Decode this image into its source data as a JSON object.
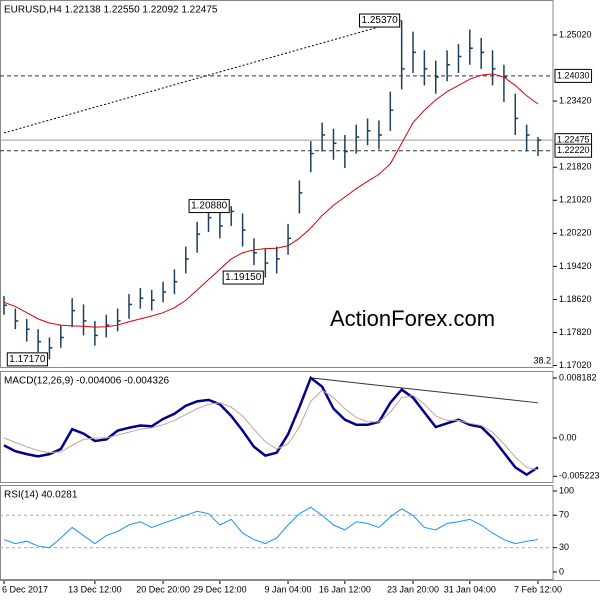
{
  "chart_data": [
    {
      "type": "ohlc",
      "title": "EURUSD,H4  1.22138 1.22550 1.22092 1.22475",
      "watermark": "ActionForex.com",
      "note": "38.2",
      "color": "#1c3f5e",
      "categories": [
        "6 Dec 2017",
        null,
        null,
        null,
        null,
        null,
        null,
        null,
        "13 Dec 12:00",
        null,
        null,
        null,
        null,
        null,
        "20 Dec 20:00",
        null,
        null,
        null,
        null,
        "29 Dec 12:00",
        null,
        null,
        null,
        null,
        null,
        "9 Jan 04:00",
        null,
        null,
        null,
        null,
        "16 Jan 12:00",
        null,
        null,
        null,
        null,
        null,
        "23 Jan 20:00",
        null,
        null,
        null,
        null,
        "31 Jan 04:00",
        null,
        null,
        null,
        null,
        null,
        "7 Feb 12:00"
      ],
      "high": {
        "values": [
          1.187,
          1.184,
          1.1815,
          1.179,
          1.177,
          1.18,
          1.1865,
          1.185,
          1.181,
          1.1825,
          1.184,
          1.1875,
          1.189,
          1.1885,
          1.1905,
          1.1935,
          1.199,
          1.205,
          1.2085,
          1.2075,
          1.2088,
          1.207,
          1.201,
          1.1985,
          1.199,
          1.2045,
          1.215,
          1.2245,
          1.229,
          1.2275,
          1.226,
          1.2285,
          1.23,
          1.2295,
          1.2365,
          1.2537,
          1.251,
          1.2465,
          1.244,
          1.2465,
          1.248,
          1.2515,
          1.2495,
          1.2465,
          1.243,
          1.236,
          1.2285,
          1.2255
        ],
        "value_labels": [
          null,
          null,
          null,
          null,
          null,
          null,
          null,
          null,
          null,
          null,
          null,
          null,
          null,
          null,
          null,
          null,
          null,
          null,
          null,
          null,
          "1.20880",
          null,
          null,
          null,
          null,
          null,
          null,
          null,
          null,
          null,
          null,
          null,
          null,
          null,
          null,
          "1.25370",
          null,
          null,
          null,
          null,
          null,
          null,
          null,
          null,
          null,
          null,
          null,
          null
        ]
      },
      "low": {
        "values": [
          1.1825,
          1.179,
          1.176,
          1.1735,
          1.1717,
          1.1745,
          1.1795,
          1.1775,
          1.175,
          1.177,
          1.1785,
          1.1815,
          1.184,
          1.1835,
          1.1855,
          1.1875,
          1.1925,
          1.1975,
          1.2025,
          1.201,
          1.204,
          1.199,
          1.1945,
          1.1915,
          1.1925,
          1.197,
          1.207,
          1.217,
          1.222,
          1.22,
          1.218,
          1.2215,
          1.2235,
          1.2225,
          1.227,
          1.237,
          1.241,
          1.238,
          1.236,
          1.239,
          1.241,
          1.243,
          1.242,
          1.238,
          1.234,
          1.226,
          1.222,
          1.22092
        ],
        "value_labels": [
          null,
          null,
          null,
          null,
          "1.17170",
          null,
          null,
          null,
          null,
          null,
          null,
          null,
          null,
          null,
          null,
          null,
          null,
          null,
          null,
          null,
          null,
          null,
          null,
          "1.19150",
          null,
          null,
          null,
          null,
          null,
          null,
          null,
          null,
          null,
          null,
          null,
          null,
          null,
          null,
          null,
          null,
          null,
          null,
          null,
          null,
          null,
          null,
          null,
          null
        ]
      },
      "close": {
        "values": [
          1.1848,
          1.181,
          1.179,
          1.176,
          1.1745,
          1.177,
          1.1835,
          1.181,
          1.1775,
          1.18,
          1.181,
          1.185,
          1.1865,
          1.186,
          1.188,
          1.1905,
          1.196,
          1.202,
          1.206,
          1.204,
          1.2075,
          1.203,
          1.1975,
          1.195,
          1.196,
          1.201,
          1.212,
          1.2215,
          1.226,
          1.224,
          1.222,
          1.2255,
          1.227,
          1.226,
          1.232,
          1.242,
          1.246,
          1.242,
          1.24,
          1.243,
          1.245,
          1.247,
          1.246,
          1.242,
          1.24,
          1.23,
          1.226,
          1.22475
        ]
      },
      "series": [
        {
          "color": "#e00000",
          "values": [
            1.1855,
            1.1845,
            1.183,
            1.1815,
            1.1805,
            1.18,
            1.1798,
            1.1797,
            1.1795,
            1.1796,
            1.18,
            1.1808,
            1.1815,
            1.1822,
            1.183,
            1.1842,
            1.186,
            1.1885,
            1.191,
            1.1935,
            1.196,
            1.1975,
            1.1982,
            1.1985,
            1.1986,
            1.1992,
            1.201,
            1.2035,
            1.2065,
            1.209,
            1.211,
            1.213,
            1.2148,
            1.2165,
            1.219,
            1.224,
            1.229,
            1.232,
            1.2345,
            1.2365,
            1.238,
            1.2395,
            1.2405,
            1.2408,
            1.24,
            1.238,
            1.2355,
            1.2335
          ]
        }
      ],
      "hlines": [
        {
          "value": 1.2403,
          "label": "1.24030",
          "style": "dashed"
        },
        {
          "value": 1.22475,
          "label": "1.22475",
          "style": "solid"
        },
        {
          "value": 1.2222,
          "label": "1.22220",
          "style": "dashed"
        }
      ],
      "trendline": {
        "x": [
          0,
          35
        ],
        "values": [
          1.2265,
          1.2537
        ]
      },
      "ylim": [
        1.16961,
        1.25867
      ],
      "yticks": [
        {
          "value": 1.2502,
          "label": "1.25020"
        },
        {
          "value": 1.2342,
          "label": "1.23420"
        },
        {
          "value": 1.2182,
          "label": "1.21820"
        },
        {
          "value": 1.2102,
          "label": "1.21020"
        },
        {
          "value": 1.2022,
          "label": "1.20220"
        },
        {
          "value": 1.1942,
          "label": "1.19420"
        },
        {
          "value": 1.1862,
          "label": "1.18620"
        },
        {
          "value": 1.1782,
          "label": "1.17820"
        },
        {
          "value": 1.1702,
          "label": "1.17020"
        }
      ]
    },
    {
      "type": "line",
      "title": "MACD(12,26,9) -0.004006 -0.004326",
      "series": [
        {
          "color": "#00008b",
          "width": 2.5,
          "values": [
            -0.001,
            -0.0018,
            -0.0022,
            -0.0025,
            -0.0022,
            -0.0015,
            0.0012,
            0.0006,
            -0.0004,
            -0.0002,
            0.001,
            0.0014,
            0.0017,
            0.0016,
            0.0026,
            0.0033,
            0.0044,
            0.005,
            0.0052,
            0.0046,
            0.003,
            0.001,
            -0.0012,
            -0.0024,
            -0.002,
            0.0005,
            0.0042,
            0.0082,
            0.007,
            0.004,
            0.0025,
            0.0018,
            0.0018,
            0.0022,
            0.0048,
            0.0066,
            0.0055,
            0.0035,
            0.0015,
            0.002,
            0.0025,
            0.0018,
            0.0015,
            0.0,
            -0.002,
            -0.004,
            -0.005,
            -0.004006
          ]
        },
        {
          "color": "#c8a0a0",
          "width": 1,
          "values": [
            0.0,
            -0.0006,
            -0.0012,
            -0.0017,
            -0.002,
            -0.0019,
            -0.001,
            -0.0002,
            0.0,
            0.0,
            0.0004,
            0.0008,
            0.0012,
            0.0014,
            0.0018,
            0.0024,
            0.0032,
            0.004,
            0.0046,
            0.0048,
            0.0042,
            0.003,
            0.0012,
            -0.0005,
            -0.0015,
            -0.0008,
            0.0015,
            0.005,
            0.0065,
            0.0055,
            0.004,
            0.0028,
            0.0022,
            0.0022,
            0.0035,
            0.0055,
            0.0058,
            0.0046,
            0.003,
            0.0024,
            0.0024,
            0.002,
            0.0017,
            0.0008,
            -0.0008,
            -0.0026,
            -0.004,
            -0.004326
          ]
        }
      ],
      "trendline": {
        "x": [
          27,
          47
        ],
        "values": [
          0.0082,
          0.0048
        ]
      },
      "ylim": [
        -0.006138,
        0.009139
      ],
      "yticks": [
        0.008182,
        {
          "value": 0,
          "label": "0.00"
        },
        -0.005223
      ]
    },
    {
      "type": "line",
      "title": "RSI(14) 40.0281",
      "series": [
        {
          "color": "#1e90ff",
          "width": 1,
          "values": [
            40,
            35,
            38,
            32,
            30,
            42,
            55,
            45,
            35,
            45,
            50,
            58,
            62,
            55,
            60,
            65,
            70,
            75,
            72,
            58,
            65,
            48,
            40,
            35,
            42,
            58,
            72,
            80,
            70,
            58,
            52,
            62,
            60,
            55,
            68,
            78,
            70,
            55,
            52,
            60,
            62,
            65,
            58,
            48,
            40,
            35,
            38,
            40.0281
          ]
        }
      ],
      "levels": [
        70,
        30
      ],
      "ylim": [
        -9.9,
        107.4
      ],
      "yticks": [
        100,
        70,
        30,
        0
      ]
    }
  ]
}
